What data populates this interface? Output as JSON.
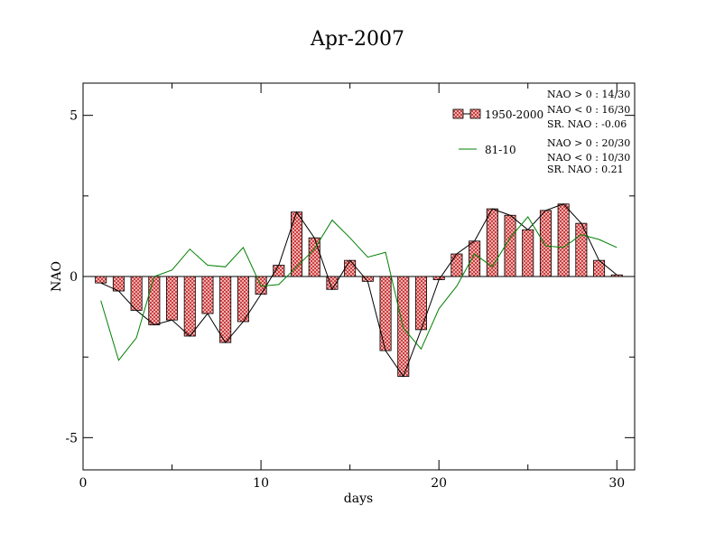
{
  "chart_data": {
    "type": "bar",
    "title": "Apr-2007",
    "xlabel": "days",
    "ylabel": "NAO",
    "xlim": [
      0,
      31
    ],
    "ylim": [
      -6,
      6
    ],
    "xticks": [
      0,
      10,
      20,
      30
    ],
    "yticks": [
      -5,
      0,
      5
    ],
    "grid": false,
    "legend_position": "top-right",
    "x": [
      1,
      2,
      3,
      4,
      5,
      6,
      7,
      8,
      9,
      10,
      11,
      12,
      13,
      14,
      15,
      16,
      17,
      18,
      19,
      20,
      21,
      22,
      23,
      24,
      25,
      26,
      27,
      28,
      29,
      30
    ],
    "series": [
      {
        "name": "1950-2000",
        "kind": "bar+line",
        "color": "#e88080",
        "values": [
          -0.2,
          -0.45,
          -1.05,
          -1.5,
          -1.35,
          -1.85,
          -1.15,
          -2.05,
          -1.4,
          -0.55,
          0.35,
          2.0,
          1.2,
          -0.4,
          0.5,
          -0.15,
          -2.3,
          -3.1,
          -1.65,
          -0.1,
          0.7,
          1.1,
          2.1,
          1.9,
          1.45,
          2.05,
          2.25,
          1.65,
          0.5,
          0.05
        ]
      },
      {
        "name": "81-10",
        "kind": "line",
        "color": "#008000",
        "values": [
          -0.75,
          -2.6,
          -1.9,
          0.0,
          0.2,
          0.85,
          0.35,
          0.3,
          0.9,
          -0.3,
          -0.25,
          0.3,
          0.85,
          1.75,
          1.2,
          0.6,
          0.75,
          -1.6,
          -2.25,
          -1.0,
          -0.3,
          0.7,
          0.3,
          1.2,
          1.85,
          0.95,
          0.9,
          1.3,
          1.15,
          0.9
        ]
      }
    ],
    "stats": [
      {
        "series": "1950-2000",
        "lines": [
          "NAO > 0 : 14/30",
          "NAO < 0 : 16/30",
          "SR. NAO : -0.06"
        ]
      },
      {
        "series": "81-10",
        "lines": [
          "NAO > 0 : 20/30",
          "NAO < 0 : 10/30",
          "SR. NAO :  0.21"
        ]
      }
    ]
  }
}
